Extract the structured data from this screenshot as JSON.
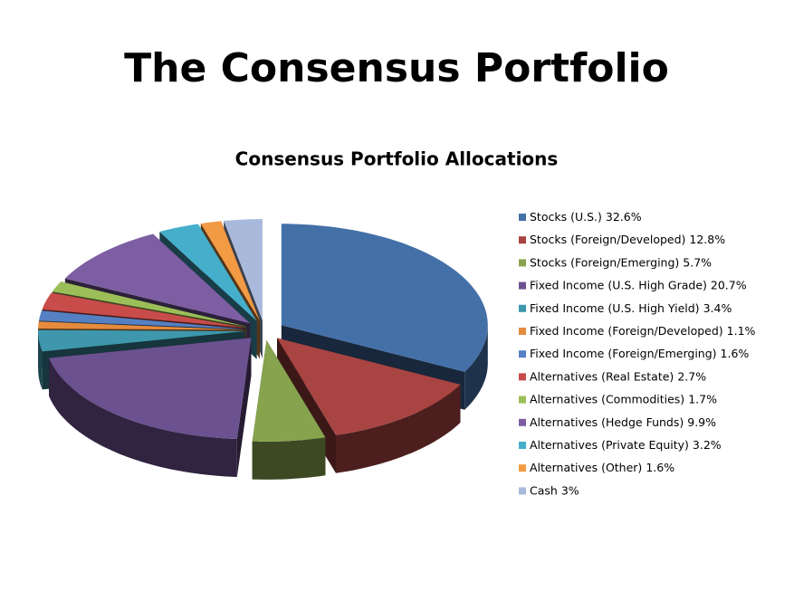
{
  "page_title": "The Consensus Portfolio",
  "chart_data": {
    "type": "pie",
    "title": "Consensus Portfolio Allocations",
    "categories": [
      "Stocks (U.S.)",
      "Stocks (Foreign/Developed)",
      "Stocks (Foreign/Emerging)",
      "Fixed Income (U.S. High Grade)",
      "Fixed Income (U.S. High Yield)",
      "Fixed Income (Foreign/Developed)",
      "Fixed Income (Foreign/Emerging)",
      "Alternatives (Real Estate)",
      "Alternatives (Commodities)",
      "Alternatives (Hedge Funds)",
      "Alternatives (Private Equity)",
      "Alternatives (Other)",
      "Cash"
    ],
    "values": [
      32.6,
      12.8,
      5.7,
      20.7,
      3.4,
      1.1,
      1.6,
      2.7,
      1.7,
      9.9,
      3.2,
      1.6,
      3
    ],
    "value_labels": [
      "32.6%",
      "12.8%",
      "5.7%",
      "20.7%",
      "3.4%",
      "1.1%",
      "1.6%",
      "2.7%",
      "1.7%",
      "9.9%",
      "3.2%",
      "1.6%",
      "3%"
    ],
    "colors": [
      "#4470a8",
      "#a84442",
      "#87a34e",
      "#6b5190",
      "#3e97ac",
      "#e48b3d",
      "#5581c4",
      "#c84c4a",
      "#9cbe58",
      "#7d5ea3",
      "#45aecb",
      "#f39a44",
      "#a9b9dc"
    ],
    "legend": "right"
  }
}
